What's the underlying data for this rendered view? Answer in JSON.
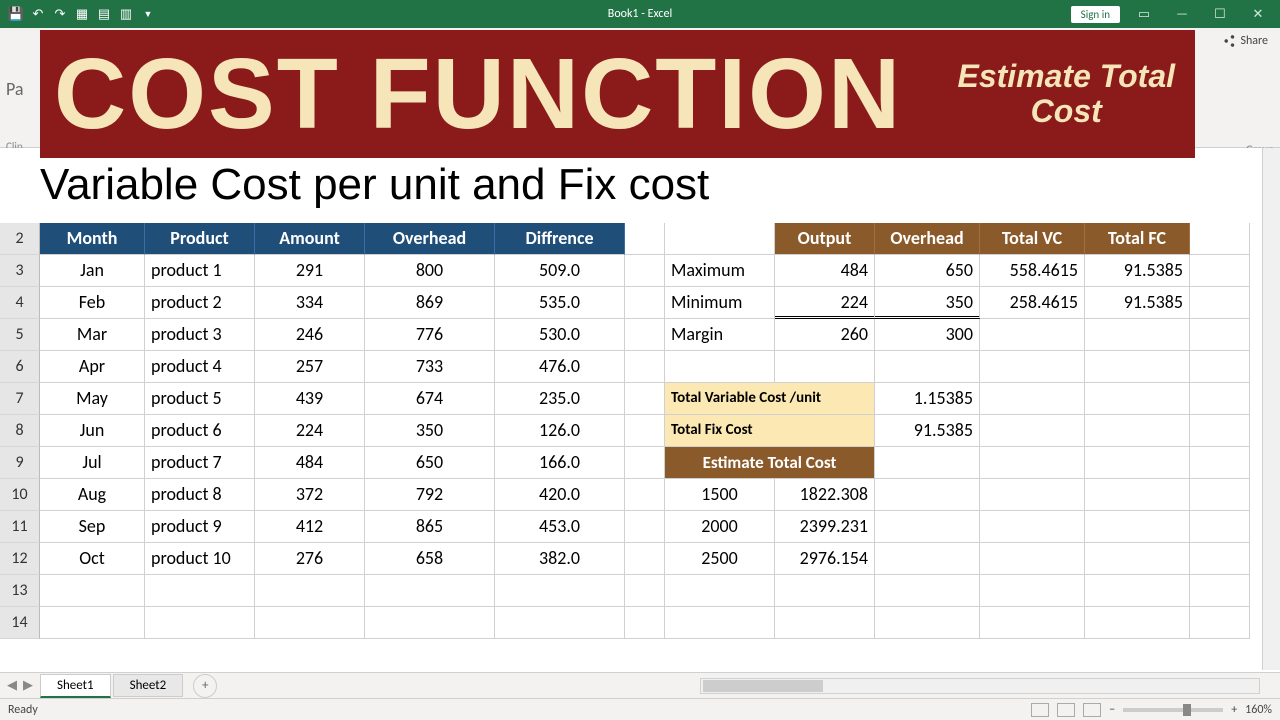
{
  "app": {
    "title": "Book1 - Excel",
    "signin": "Sign in",
    "share": "Share",
    "ribbon_left_label": "Clip",
    "ribbon_right_label": "Group",
    "paste_partial": "Pa"
  },
  "banner": {
    "main": "COST FUNCTION",
    "sub_line1": "Estimate Total",
    "sub_line2": "Cost",
    "bg_color": "#8b1a1a",
    "text_color": "#f5e5b8"
  },
  "subtitle": "Variable Cost per unit and Fix cost",
  "row_headers": [
    "2",
    "3",
    "4",
    "5",
    "6",
    "7",
    "8",
    "9",
    "10",
    "11",
    "12",
    "13",
    "14"
  ],
  "main_table": {
    "header_bg": "#1f4e79",
    "header_color": "#ffffff",
    "columns": [
      "Month",
      "Product",
      "Amount",
      "Overhead",
      "Diffrence"
    ],
    "rows": [
      [
        "Jan",
        "product 1",
        "291",
        "800",
        "509.0"
      ],
      [
        "Feb",
        "product 2",
        "334",
        "869",
        "535.0"
      ],
      [
        "Mar",
        "product 3",
        "246",
        "776",
        "530.0"
      ],
      [
        "Apr",
        "product 4",
        "257",
        "733",
        "476.0"
      ],
      [
        "May",
        "product 5",
        "439",
        "674",
        "235.0"
      ],
      [
        "Jun",
        "product 6",
        "224",
        "350",
        "126.0"
      ],
      [
        "Jul",
        "product 7",
        "484",
        "650",
        "166.0"
      ],
      [
        "Aug",
        "product 8",
        "372",
        "792",
        "420.0"
      ],
      [
        "Sep",
        "product 9",
        "412",
        "865",
        "453.0"
      ],
      [
        "Oct",
        "product 10",
        "276",
        "658",
        "382.0"
      ]
    ]
  },
  "summary_table": {
    "header_bg": "#8b5a2b",
    "header_color": "#ffffff",
    "columns": [
      "",
      "Output",
      "Overhead",
      "Total VC",
      "Total FC"
    ],
    "rows": [
      [
        "Maximum",
        "484",
        "650",
        "558.4615",
        "91.5385"
      ],
      [
        "Minimum",
        "224",
        "350",
        "258.4615",
        "91.5385"
      ],
      [
        "Margin",
        "260",
        "300",
        "",
        ""
      ]
    ]
  },
  "calc": {
    "cell_bg": "#fce8b2",
    "tvcu_label": "Total Variable Cost /unit",
    "tvcu_value": "1.15385",
    "tfc_label": "Total Fix Cost",
    "tfc_value": "91.5385",
    "etc_label": "Estimate Total Cost",
    "etc_rows": [
      [
        "1500",
        "1822.308"
      ],
      [
        "2000",
        "2399.231"
      ],
      [
        "2500",
        "2976.154"
      ]
    ]
  },
  "tabs": {
    "active": "Sheet1",
    "inactive": "Sheet2"
  },
  "status": {
    "ready": "Ready",
    "zoom": "160%"
  }
}
